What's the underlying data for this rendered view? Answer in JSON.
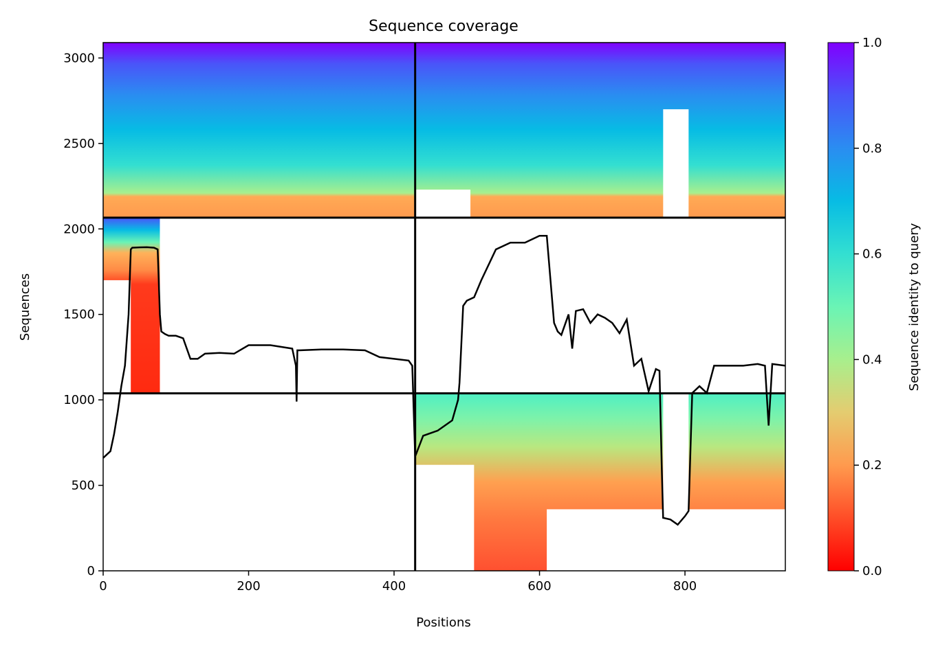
{
  "chart_data": {
    "type": "heatmap",
    "title": "Sequence coverage",
    "xlabel": "Positions",
    "ylabel": "Sequences",
    "xlim": [
      0,
      938
    ],
    "ylim": [
      0,
      3090
    ],
    "x_ticks": [
      0,
      200,
      400,
      600,
      800
    ],
    "y_ticks": [
      0,
      500,
      1000,
      1500,
      2000,
      2500,
      3000
    ],
    "grid": false,
    "chain_boundaries": {
      "positions": [
        429
      ],
      "sequences": [
        1038,
        2066
      ]
    },
    "colorbar": {
      "label": "Sequence identity to query",
      "range": [
        0.0,
        1.0
      ],
      "ticks": [
        "0.0",
        "0.2",
        "0.4",
        "0.6",
        "0.8",
        "1.0"
      ],
      "colormap": "rainbow_r"
    },
    "coverage_blocks": [
      {
        "x": [
          0,
          429
        ],
        "y": [
          2066,
          3090
        ],
        "id": [
          0.15,
          1.0
        ]
      },
      {
        "x": [
          429,
          938
        ],
        "y": [
          2066,
          3090
        ],
        "id": [
          0.15,
          1.0
        ],
        "gap": [
          770,
          805
        ]
      },
      {
        "x": [
          0,
          429
        ],
        "y": [
          1038,
          2066
        ],
        "id": [
          0.0,
          1.0
        ],
        "gap": [
          78,
          429
        ]
      },
      {
        "x": [
          429,
          938
        ],
        "y": [
          0,
          1038
        ],
        "id": [
          0.0,
          0.6
        ],
        "gap": [
          770,
          805
        ]
      }
    ],
    "series": [
      {
        "x": [
          0,
          10,
          15,
          20,
          25,
          30,
          35,
          38,
          40,
          50,
          60,
          70,
          75,
          78,
          80,
          85,
          90,
          100,
          110,
          120,
          130,
          140,
          160,
          180,
          200,
          230,
          260,
          265,
          266,
          267,
          270,
          300,
          330,
          360,
          380,
          400,
          420,
          425,
          429,
          430,
          440,
          460,
          480,
          488,
          490,
          495,
          500,
          510,
          520,
          540,
          560,
          580,
          600,
          610,
          620,
          625,
          630,
          640,
          645,
          650,
          660,
          670,
          680,
          690,
          700,
          710,
          720,
          730,
          740,
          750,
          760,
          765,
          768,
          770,
          780,
          790,
          800,
          805,
          810,
          820,
          830,
          840,
          860,
          880,
          900,
          910,
          915,
          920,
          938
        ],
        "y": [
          660,
          700,
          800,
          930,
          1080,
          1200,
          1500,
          1880,
          1890,
          1892,
          1893,
          1890,
          1880,
          1500,
          1400,
          1385,
          1375,
          1375,
          1360,
          1240,
          1240,
          1270,
          1275,
          1270,
          1320,
          1320,
          1300,
          1200,
          990,
          1290,
          1290,
          1295,
          1295,
          1290,
          1250,
          1240,
          1230,
          1200,
          670,
          680,
          790,
          820,
          880,
          1000,
          1100,
          1550,
          1580,
          1600,
          1700,
          1880,
          1920,
          1920,
          1960,
          1960,
          1450,
          1400,
          1380,
          1500,
          1300,
          1520,
          1530,
          1450,
          1500,
          1480,
          1450,
          1390,
          1470,
          1200,
          1240,
          1050,
          1180,
          1170,
          620,
          310,
          300,
          270,
          320,
          350,
          1040,
          1080,
          1040,
          1200,
          1200,
          1200,
          1210,
          1200,
          850,
          1210,
          1200
        ]
      }
    ]
  }
}
